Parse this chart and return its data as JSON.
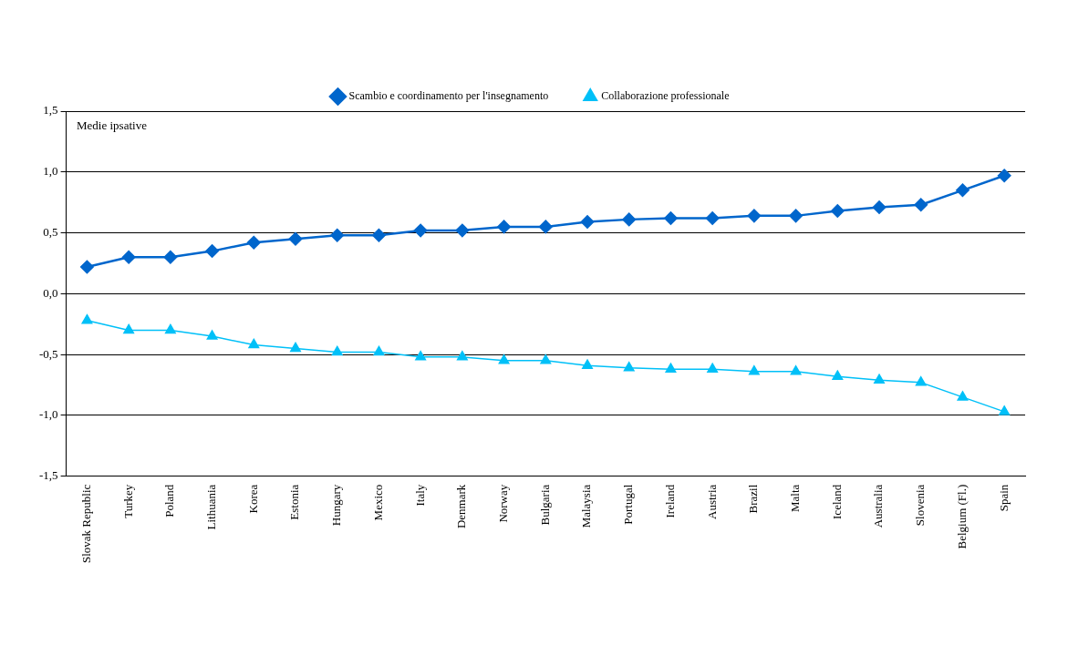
{
  "chart_data": {
    "type": "line",
    "ylabel": "Medie ipsative",
    "categories": [
      "Slovak Republic",
      "Turkey",
      "Poland",
      "Lithuania",
      "Korea",
      "Estonia",
      "Hungary",
      "Mexico",
      "Italy",
      "Denmark",
      "Norway",
      "Bulgaria",
      "Malaysia",
      "Portugal",
      "Ireland",
      "Austria",
      "Brazil",
      "Malta",
      "Iceland",
      "Australia",
      "Slovenia",
      "Belgium (Fl.)",
      "Spain"
    ],
    "series": [
      {
        "name": "Scambio e coordinamento per l'insegnamento",
        "color": "#0066cc",
        "marker": "diamond",
        "values": [
          0.22,
          0.3,
          0.3,
          0.35,
          0.42,
          0.45,
          0.48,
          0.48,
          0.52,
          0.52,
          0.55,
          0.55,
          0.59,
          0.61,
          0.62,
          0.62,
          0.64,
          0.64,
          0.68,
          0.71,
          0.73,
          0.85,
          0.97
        ]
      },
      {
        "name": "Collaborazione professionale",
        "color": "#00c0f8",
        "marker": "triangle",
        "values": [
          -0.22,
          -0.3,
          -0.3,
          -0.35,
          -0.42,
          -0.45,
          -0.48,
          -0.48,
          -0.52,
          -0.52,
          -0.55,
          -0.55,
          -0.59,
          -0.61,
          -0.62,
          -0.62,
          -0.64,
          -0.64,
          -0.68,
          -0.71,
          -0.73,
          -0.85,
          -0.97
        ]
      }
    ],
    "ylim": [
      -1.5,
      1.5
    ],
    "yticks": [
      {
        "value": -1.5,
        "label": "-1,5"
      },
      {
        "value": -1,
        "label": "-1,0"
      },
      {
        "value": -0.5,
        "label": "-0,5"
      },
      {
        "value": 0,
        "label": "0,0"
      },
      {
        "value": 0.5,
        "label": "0,5"
      },
      {
        "value": 1,
        "label": "1,0"
      },
      {
        "value": 1.5,
        "label": "1,5"
      }
    ],
    "grid": "y",
    "legend": "top",
    "line_style": "solid"
  }
}
